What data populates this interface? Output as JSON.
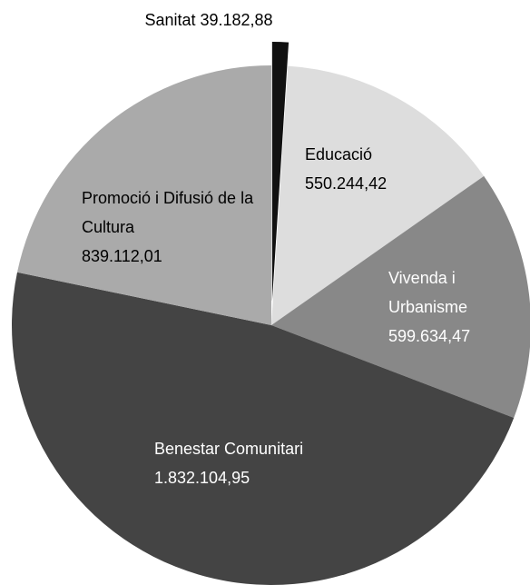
{
  "chart_data": {
    "type": "pie",
    "categories": [
      "Sanitat",
      "Educació",
      "Vivenda i Urbanisme",
      "Benestar Comunitari",
      "Promoció i Difusió de la Cultura"
    ],
    "values": [
      39182.88,
      550244.42,
      599634.47,
      1832104.95,
      839112.01
    ],
    "value_labels": [
      "39.182,88",
      "550.244,42",
      "599.634,47",
      "1.832.104,95",
      "839.112,01"
    ],
    "colors": [
      "#111111",
      "#dddddd",
      "#888888",
      "#444444",
      "#aaaaaa"
    ],
    "label_colors": [
      "#000000",
      "#000000",
      "#ffffff",
      "#ffffff",
      "#000000"
    ],
    "exploded": [
      true,
      false,
      false,
      false,
      false
    ]
  }
}
